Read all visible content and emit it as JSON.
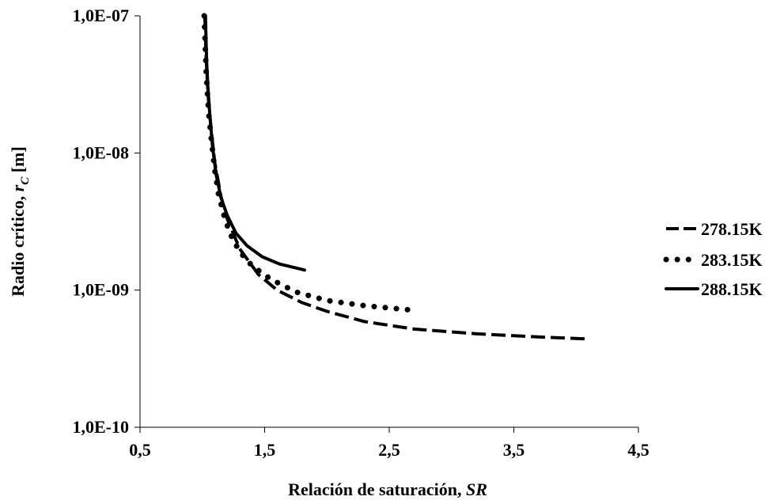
{
  "chart_data": {
    "type": "line",
    "xlabel": "Relación de saturación, ",
    "xlabel_italic": "SR",
    "ylabel": "Radio crítico, ",
    "ylabel_italic": "r",
    "ylabel_sub": "C",
    "ylabel_unit": " [m]",
    "xlim": [
      0.5,
      4.5
    ],
    "ylim": [
      1e-10,
      1e-07
    ],
    "y_scale": "log",
    "x_ticks": [
      0.5,
      1.5,
      2.5,
      3.5,
      4.5
    ],
    "x_tick_labels": [
      "0,5",
      "1,5",
      "2,5",
      "3,5",
      "4,5"
    ],
    "y_ticks": [
      1e-10,
      1e-09,
      1e-08,
      1e-07
    ],
    "y_tick_labels": [
      "1,0E-10",
      "1,0E-09",
      "1,0E-08",
      "1,0E-07"
    ],
    "grid": false,
    "legend_position": "right",
    "series": [
      {
        "name": "278.15K",
        "style": "dashed",
        "color": "#000000",
        "x": [
          1.02,
          1.025,
          1.03,
          1.04,
          1.05,
          1.07,
          1.1,
          1.15,
          1.2,
          1.3,
          1.45,
          1.6,
          1.8,
          2.0,
          2.3,
          2.7,
          3.2,
          3.7,
          4.1
        ],
        "y": [
          1e-07,
          7e-08,
          5e-08,
          3.3e-08,
          2.4e-08,
          1.5e-08,
          8.5e-09,
          4.8e-09,
          3.3e-09,
          2e-09,
          1.3e-09,
          1e-09,
          8.1e-10,
          7e-10,
          5.9e-10,
          5.2e-10,
          4.8e-10,
          4.55e-10,
          4.4e-10
        ]
      },
      {
        "name": "283.15K",
        "style": "dotted",
        "color": "#000000",
        "x": [
          1.015,
          1.02,
          1.025,
          1.03,
          1.04,
          1.05,
          1.07,
          1.1,
          1.13,
          1.17,
          1.22,
          1.3,
          1.4,
          1.55,
          1.75,
          2.0,
          2.3,
          2.65
        ],
        "y": [
          1e-07,
          7.5e-08,
          5.5e-08,
          4e-08,
          2.8e-08,
          2e-08,
          1.3e-08,
          7.5e-09,
          5e-09,
          3.6e-09,
          2.6e-09,
          1.9e-09,
          1.5e-09,
          1.2e-09,
          9.7e-10,
          8.4e-10,
          7.7e-10,
          7.2e-10
        ]
      },
      {
        "name": "288.15K",
        "style": "solid",
        "color": "#000000",
        "x": [
          1.025,
          1.03,
          1.035,
          1.045,
          1.06,
          1.08,
          1.11,
          1.15,
          1.2,
          1.27,
          1.36,
          1.48,
          1.62,
          1.82
        ],
        "y": [
          1e-07,
          6.5e-08,
          4.5e-08,
          3e-08,
          1.9e-08,
          1.15e-08,
          7e-09,
          4.7e-09,
          3.5e-09,
          2.6e-09,
          2.1e-09,
          1.75e-09,
          1.55e-09,
          1.4e-09
        ]
      }
    ]
  }
}
